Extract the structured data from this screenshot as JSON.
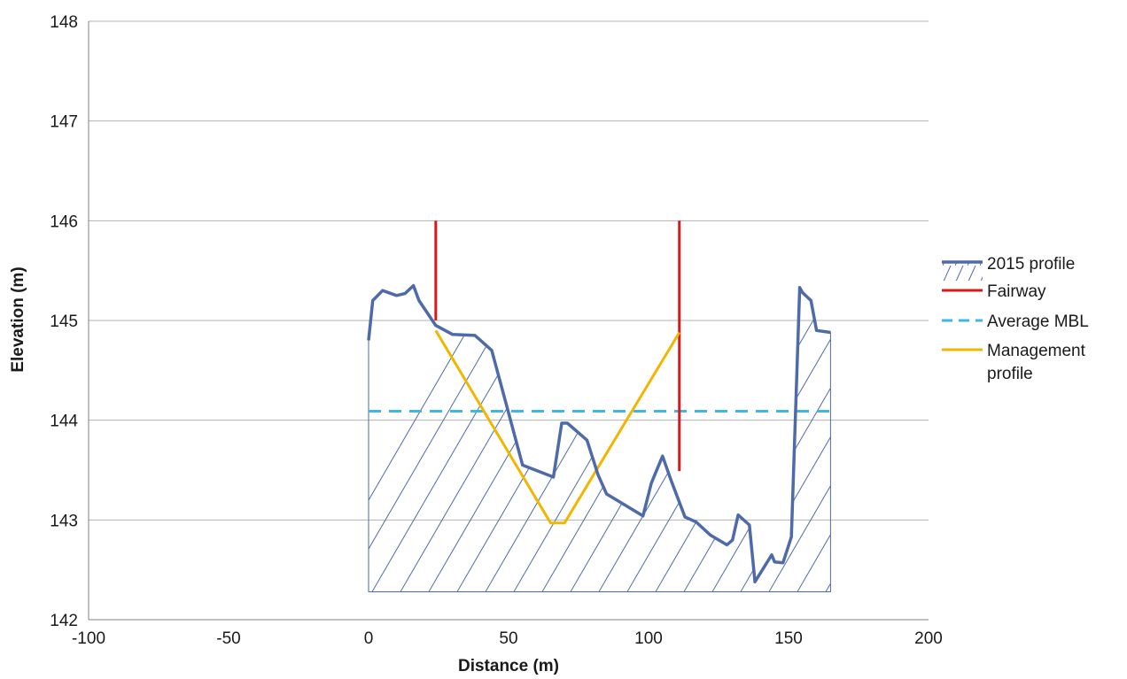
{
  "chart_data": {
    "type": "line",
    "xlabel": "Distance (m)",
    "ylabel": "Elevation (m)",
    "xlim": [
      -100,
      200
    ],
    "ylim": [
      142,
      148
    ],
    "xticks": [
      -100,
      -50,
      0,
      50,
      100,
      150,
      200
    ],
    "yticks": [
      142,
      143,
      144,
      145,
      146,
      147,
      148
    ],
    "xtick_labels": [
      "-100",
      "-50",
      "0",
      "50",
      "100",
      "150",
      "200"
    ],
    "ytick_labels": [
      "142",
      "143",
      "144",
      "145",
      "146",
      "147",
      "148"
    ],
    "grid": "horizontal",
    "legend_position": "right",
    "colors": {
      "profile": "#4e6aa8",
      "fairway": "#d7191c",
      "average_mbl": "#3fb6e8",
      "management": "#f2b600",
      "gridline": "#b3b3b3"
    },
    "hatch_base": 142.28,
    "series": [
      {
        "name": "2015 profile",
        "style": "solid-with-hatch",
        "x": [
          0,
          1.5,
          5,
          10,
          13,
          16,
          18,
          24,
          30,
          38,
          44,
          49,
          55,
          66,
          69,
          71,
          78,
          82,
          85,
          98,
          101,
          105,
          108,
          113,
          117,
          122,
          128,
          130,
          132,
          136,
          138,
          144,
          145,
          148,
          151,
          154,
          155,
          158,
          160,
          165
        ],
        "y": [
          144.8,
          145.2,
          145.3,
          145.25,
          145.27,
          145.35,
          145.2,
          144.95,
          144.86,
          144.85,
          144.7,
          144.18,
          143.55,
          143.43,
          143.97,
          143.97,
          143.8,
          143.45,
          143.26,
          143.04,
          143.37,
          143.64,
          143.4,
          143.03,
          142.98,
          142.85,
          142.75,
          142.8,
          143.05,
          142.95,
          142.38,
          142.65,
          142.58,
          142.57,
          142.83,
          145.33,
          145.28,
          145.2,
          144.9,
          144.88
        ]
      },
      {
        "name": "Fairway",
        "style": "solid",
        "segments": [
          {
            "x": [
              24,
              24
            ],
            "y": [
              146,
              145
            ]
          },
          {
            "x": [
              111,
              111
            ],
            "y": [
              146,
              143.49
            ]
          }
        ]
      },
      {
        "name": "Average MBL",
        "style": "dashed",
        "x": [
          0,
          165
        ],
        "y": [
          144.09,
          144.09
        ]
      },
      {
        "name": "Management profile",
        "style": "solid",
        "x": [
          24,
          65,
          70,
          111
        ],
        "y": [
          144.9,
          142.97,
          142.97,
          144.88
        ]
      }
    ]
  },
  "legend": [
    {
      "key": "profile",
      "label": "2015 profile"
    },
    {
      "key": "fairway",
      "label": "Fairway"
    },
    {
      "key": "average_mbl",
      "label": "Average MBL"
    },
    {
      "key": "management",
      "label": "Management profile"
    }
  ]
}
